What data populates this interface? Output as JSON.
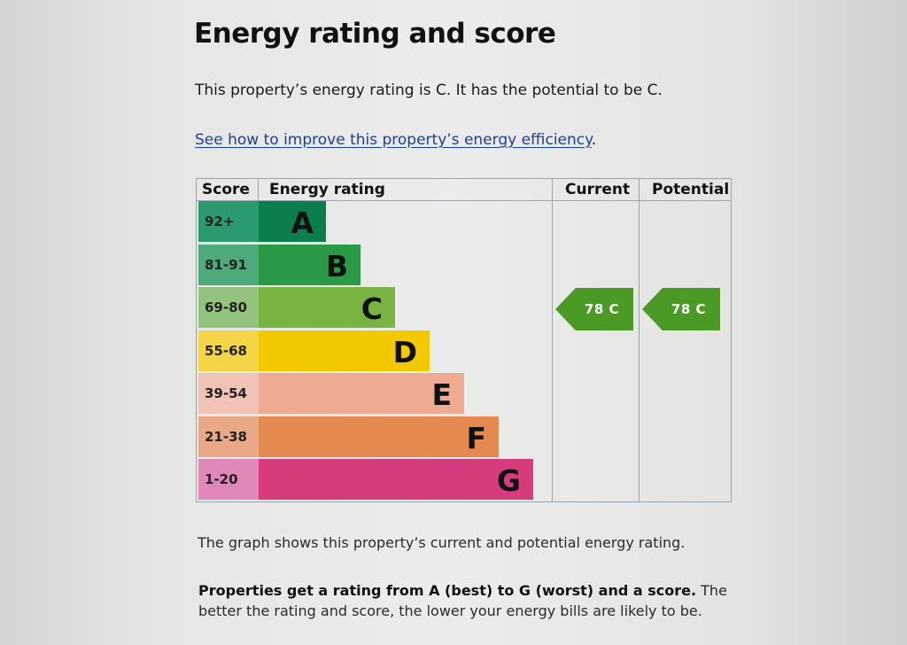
{
  "heading": "Energy rating and score",
  "summary": "This property’s energy rating is C. It has the potential to be C.",
  "improve_link": "See how to improve this property’s energy efficiency",
  "improve_link_suffix": ".",
  "chart": {
    "headers": {
      "score": "Score",
      "energy_rating": "Energy rating",
      "current": "Current",
      "potential": "Potential"
    },
    "bands": [
      {
        "score": "92+",
        "letter": "A",
        "color": "#0c7e4b",
        "score_color": "#2b9a6f"
      },
      {
        "score": "81-91",
        "letter": "B",
        "color": "#2a9a47",
        "score_color": "#4eaa7a"
      },
      {
        "score": "69-80",
        "letter": "C",
        "color": "#79b341",
        "score_color": "#93c47f"
      },
      {
        "score": "55-68",
        "letter": "D",
        "color": "#f2c800",
        "score_color": "#f3d547"
      },
      {
        "score": "39-54",
        "letter": "E",
        "color": "#efab92",
        "score_color": "#f1c3b6"
      },
      {
        "score": "21-38",
        "letter": "F",
        "color": "#e48a50",
        "score_color": "#e9a986"
      },
      {
        "score": "1-20",
        "letter": "G",
        "color": "#d63c7b",
        "score_color": "#e088b8"
      }
    ],
    "current": {
      "label": "78 C",
      "score": 78,
      "band": "C",
      "color": "#4b9a26"
    },
    "potential": {
      "label": "78 C",
      "score": 78,
      "band": "C",
      "color": "#4b9a26"
    }
  },
  "graph_note": "The graph shows this property’s current and potential energy rating.",
  "explain_bold": "Properties get a rating from A (best) to G (worst) and a score.",
  "explain_rest": " The better the rating and score, the lower your energy bills are likely to be."
}
